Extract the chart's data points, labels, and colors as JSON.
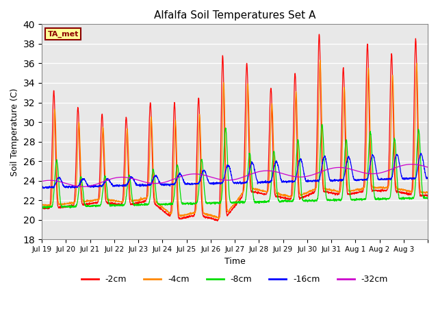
{
  "title": "Alfalfa Soil Temperatures Set A",
  "xlabel": "Time",
  "ylabel": "Soil Temperature (C)",
  "ylim": [
    18,
    40
  ],
  "yticks": [
    18,
    20,
    22,
    24,
    26,
    28,
    30,
    32,
    34,
    36,
    38,
    40
  ],
  "fig_bg": "#ffffff",
  "plot_bg": "#e8e8e8",
  "colors": {
    "-2cm": "#ff0000",
    "-4cm": "#ff8800",
    "-8cm": "#00dd00",
    "-16cm": "#0000ff",
    "-32cm": "#cc00cc"
  },
  "legend_label": "TA_met",
  "legend_box_color": "#ffff99",
  "legend_box_edge": "#8b0000",
  "date_labels": [
    "Jul 19",
    "Jul 20",
    "Jul 21",
    "Jul 22",
    "Jul 23",
    "Jul 24",
    "Jul 25",
    "Jul 26",
    "Jul 27",
    "Jul 28",
    "Jul 29",
    "Jul 30",
    "Jul 31",
    "Aug 1",
    "Aug 2",
    "Aug 3"
  ],
  "n_days": 16,
  "seed": 42
}
